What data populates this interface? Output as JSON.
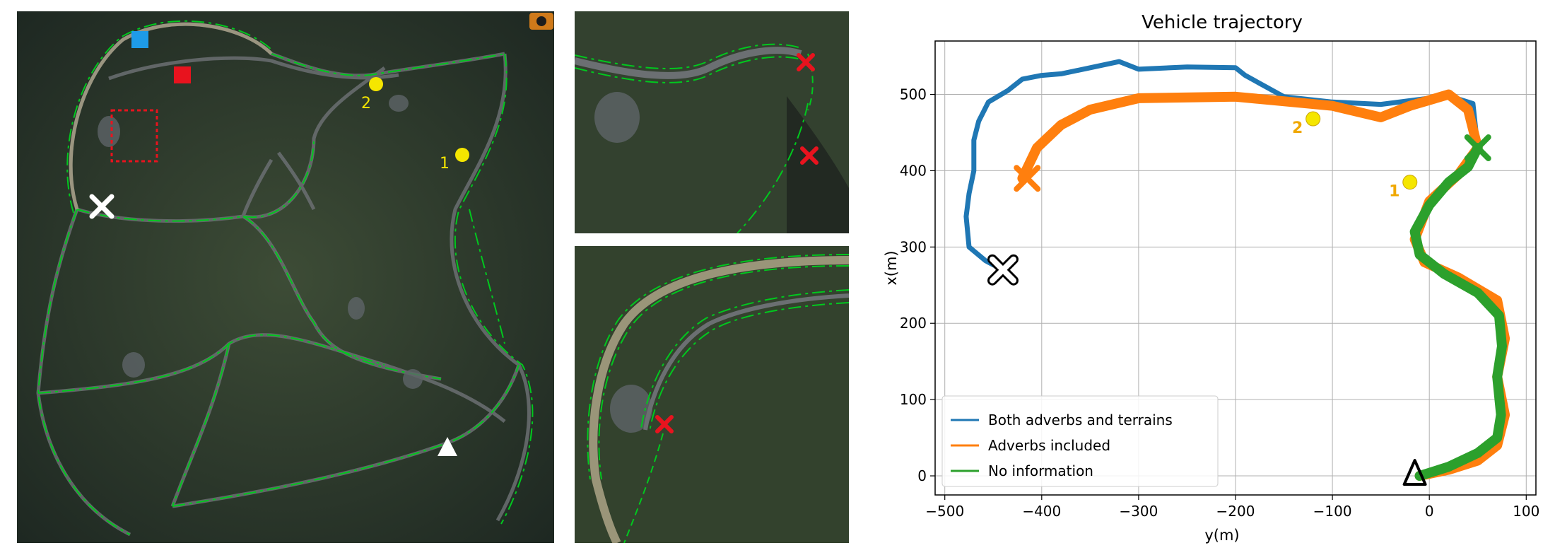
{
  "maps": {
    "main_labels": {
      "marker_1": "1",
      "marker_2": "2"
    },
    "colors": {
      "terrain": "#2b3a2a",
      "road": "#6b6f72",
      "trail": "#00c81e",
      "start_marker": "#ffffff",
      "end_marker": "#ffffff",
      "blue_square": "#1e9be8",
      "red_square": "#e8131e",
      "red_box": "#e8131e",
      "waypoint": "#f5e600",
      "red_cross": "#e8131e"
    }
  },
  "chart_data": {
    "type": "line",
    "title": "Vehicle trajectory",
    "xlabel": "y(m)",
    "ylabel": "x(m)",
    "xlim": [
      -510,
      110
    ],
    "ylim": [
      -25,
      570
    ],
    "xticks": [
      -500,
      -400,
      -300,
      -200,
      -100,
      0,
      100
    ],
    "yticks": [
      0,
      100,
      200,
      300,
      400,
      500
    ],
    "xtick_labels": [
      "−500",
      "−400",
      "−300",
      "−200",
      "−100",
      "0",
      "100"
    ],
    "ytick_labels": [
      "0",
      "100",
      "200",
      "300",
      "400",
      "500"
    ],
    "grid": true,
    "legend_position": "lower-left",
    "series": [
      {
        "name": "Both adverbs and terrains",
        "color": "#1f77b4",
        "x": [
          -440,
          -458,
          -475,
          -478,
          -475,
          -470,
          -470,
          -465,
          -455,
          -435,
          -420,
          -400,
          -380,
          -350,
          -320,
          -310,
          -300,
          -250,
          -200,
          -190,
          -150,
          -100,
          -50,
          0,
          20,
          45,
          50
        ],
        "y": [
          270,
          282,
          300,
          340,
          370,
          400,
          440,
          465,
          490,
          505,
          520,
          525,
          527,
          535,
          543,
          538,
          533,
          536,
          535,
          525,
          497,
          490,
          487,
          495,
          498,
          488,
          430
        ]
      },
      {
        "name": "Adverbs included",
        "color": "#ff7f0e",
        "x": [
          -420,
          -405,
          -380,
          -350,
          -300,
          -200,
          -100,
          -50,
          -20,
          20,
          40,
          50,
          30,
          0,
          -15,
          -5,
          30,
          70,
          78,
          70,
          78,
          70,
          50,
          20,
          -10
        ],
        "y": [
          390,
          430,
          460,
          480,
          495,
          497,
          485,
          470,
          485,
          500,
          480,
          430,
          395,
          360,
          310,
          280,
          260,
          230,
          180,
          130,
          80,
          40,
          20,
          8,
          0
        ]
      },
      {
        "name": "No information",
        "color": "#2ca02c",
        "x": [
          50,
          40,
          20,
          0,
          -15,
          -10,
          15,
          50,
          72,
          75,
          70,
          74,
          70,
          50,
          20,
          -10
        ],
        "y": [
          430,
          405,
          385,
          355,
          320,
          290,
          265,
          240,
          210,
          170,
          130,
          80,
          50,
          30,
          12,
          0
        ]
      }
    ],
    "markers": {
      "start": {
        "x": -15,
        "y": 0
      },
      "end_blue": {
        "x": -440,
        "y": 270
      },
      "end_orange": {
        "x": -415,
        "y": 390
      },
      "end_green": {
        "x": 50,
        "y": 430
      },
      "waypoint_1": {
        "x": -20,
        "y": 385,
        "label": "1"
      },
      "waypoint_2": {
        "x": -120,
        "y": 468,
        "label": "2"
      }
    }
  }
}
